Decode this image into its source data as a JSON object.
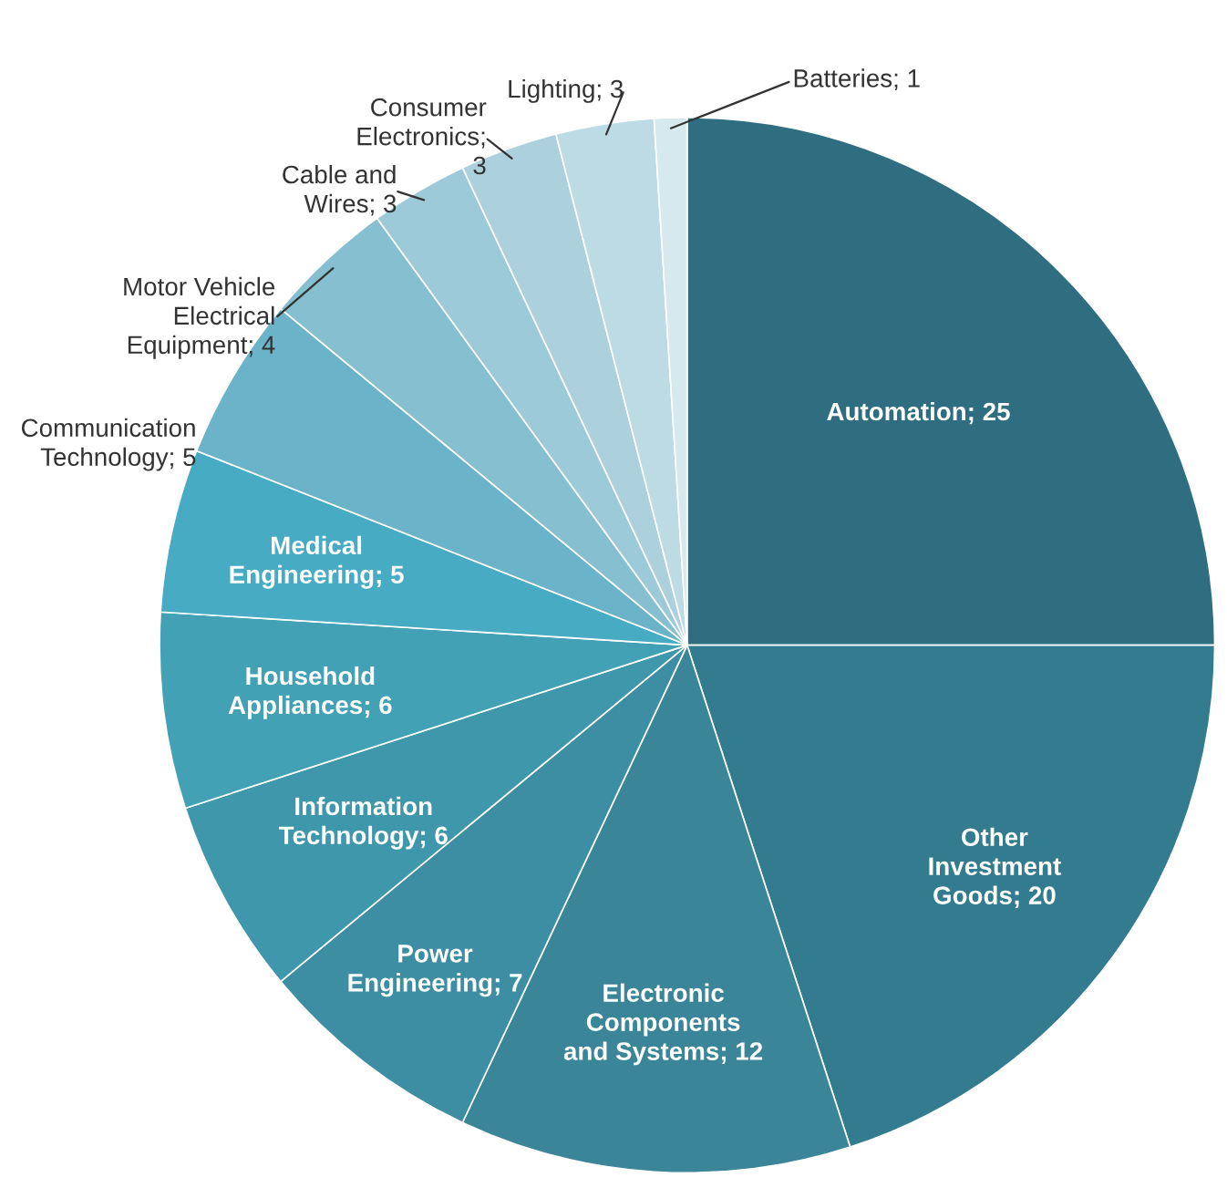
{
  "chart_data": {
    "type": "pie",
    "categories": [
      "Automation; 25",
      "Other\nInvestment\nGoods; 20",
      "Electronic\nComponents\nand Systems; 12",
      "Power\nEngineering; 7",
      "Information\nTechnology; 6",
      "Household\nAppliances; 6",
      "Medical\nEngineering; 5",
      "Communication\nTechnology; 5",
      "Motor Vehicle\nElectrical\nEquipment; 4",
      "Cable and\nWires; 3",
      "Consumer\nElectronics;\n3",
      "Lighting; 3",
      "Batteries; 1"
    ],
    "values": [
      25,
      20,
      12,
      7,
      6,
      6,
      5,
      5,
      4,
      3,
      3,
      3,
      1
    ],
    "colors": [
      "#2e6e80",
      "#337c8f",
      "#3a8598",
      "#3d8ea2",
      "#3f97ab",
      "#42a1b5",
      "#46abc3",
      "#6bb3c8",
      "#86bfd0",
      "#9ccad8",
      "#acd1dd",
      "#bcdbe5",
      "#d6e9ef"
    ],
    "legend": false
  }
}
